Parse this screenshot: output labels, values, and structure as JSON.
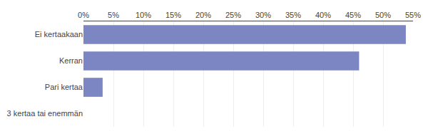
{
  "chart_data": {
    "type": "bar",
    "orientation": "horizontal",
    "categories": [
      "3 kertaa tai enemmän",
      "Pari kertaa",
      "Kerran",
      "Ei kertaakaan"
    ],
    "values": [
      0,
      3.2,
      46.0,
      53.8
    ],
    "color": "#7b86c2",
    "xlim": [
      0,
      55
    ],
    "xticks": [
      {
        "value": 0,
        "label": "0%"
      },
      {
        "value": 5,
        "label": "5%"
      },
      {
        "value": 10,
        "label": "10%"
      },
      {
        "value": 15,
        "label": "15%"
      },
      {
        "value": 20,
        "label": "20%"
      },
      {
        "value": 25,
        "label": "25%"
      },
      {
        "value": 30,
        "label": "30%"
      },
      {
        "value": 35,
        "label": "35%"
      },
      {
        "value": 40,
        "label": "40%"
      },
      {
        "value": 45,
        "label": "45%"
      },
      {
        "value": 50,
        "label": "50%"
      },
      {
        "value": 55,
        "label": "55%"
      }
    ],
    "grid": true
  }
}
